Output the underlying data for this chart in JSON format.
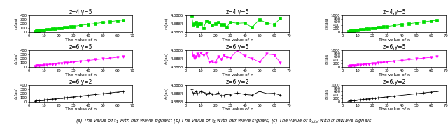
{
  "n_values": [
    4,
    5,
    6,
    7,
    8,
    9,
    10,
    12,
    14,
    16,
    18,
    20,
    22,
    24,
    26,
    28,
    30,
    35,
    40,
    45,
    50,
    55,
    60,
    64
  ],
  "rows": [
    {
      "title": "z=4,y=5",
      "color": "#00dd00",
      "marker": "s",
      "marker_inv": false
    },
    {
      "title": "z=6,y=5",
      "color": "#ff00ff",
      "marker": "v",
      "marker_inv": true
    },
    {
      "title": "z=6,y=2",
      "color": "#000000",
      "marker": "+",
      "marker_inv": false
    }
  ],
  "xlabel": "The value of n",
  "caption": "(a) The value of $t_1$ with mmWave signals; (b) The value of $t_2$ with mmWave signals; (c) The value of $t_{total}$ with mmWave signals",
  "col0_ylim": [
    0,
    400
  ],
  "col0_yticks": [
    0,
    100,
    200,
    300,
    400
  ],
  "col1_ylim": [
    4.3883,
    4.3885
  ],
  "col1_yticks": [
    4.3883,
    4.3884,
    4.3885
  ],
  "col2_ylim": [
    0,
    1000
  ],
  "col2_yticks": [
    0,
    200,
    400,
    600,
    800,
    1000
  ],
  "xlim": [
    0,
    70
  ],
  "xticks": [
    0,
    10,
    20,
    30,
    40,
    50,
    60,
    70
  ],
  "t1_scale": [
    4.5,
    3.8,
    3.8
  ],
  "t3_scale": [
    11.0,
    9.5,
    9.5
  ],
  "t2_noise": [
    3e-05,
    4.5e-05,
    1.5e-05
  ],
  "t2_base": 4.3884
}
